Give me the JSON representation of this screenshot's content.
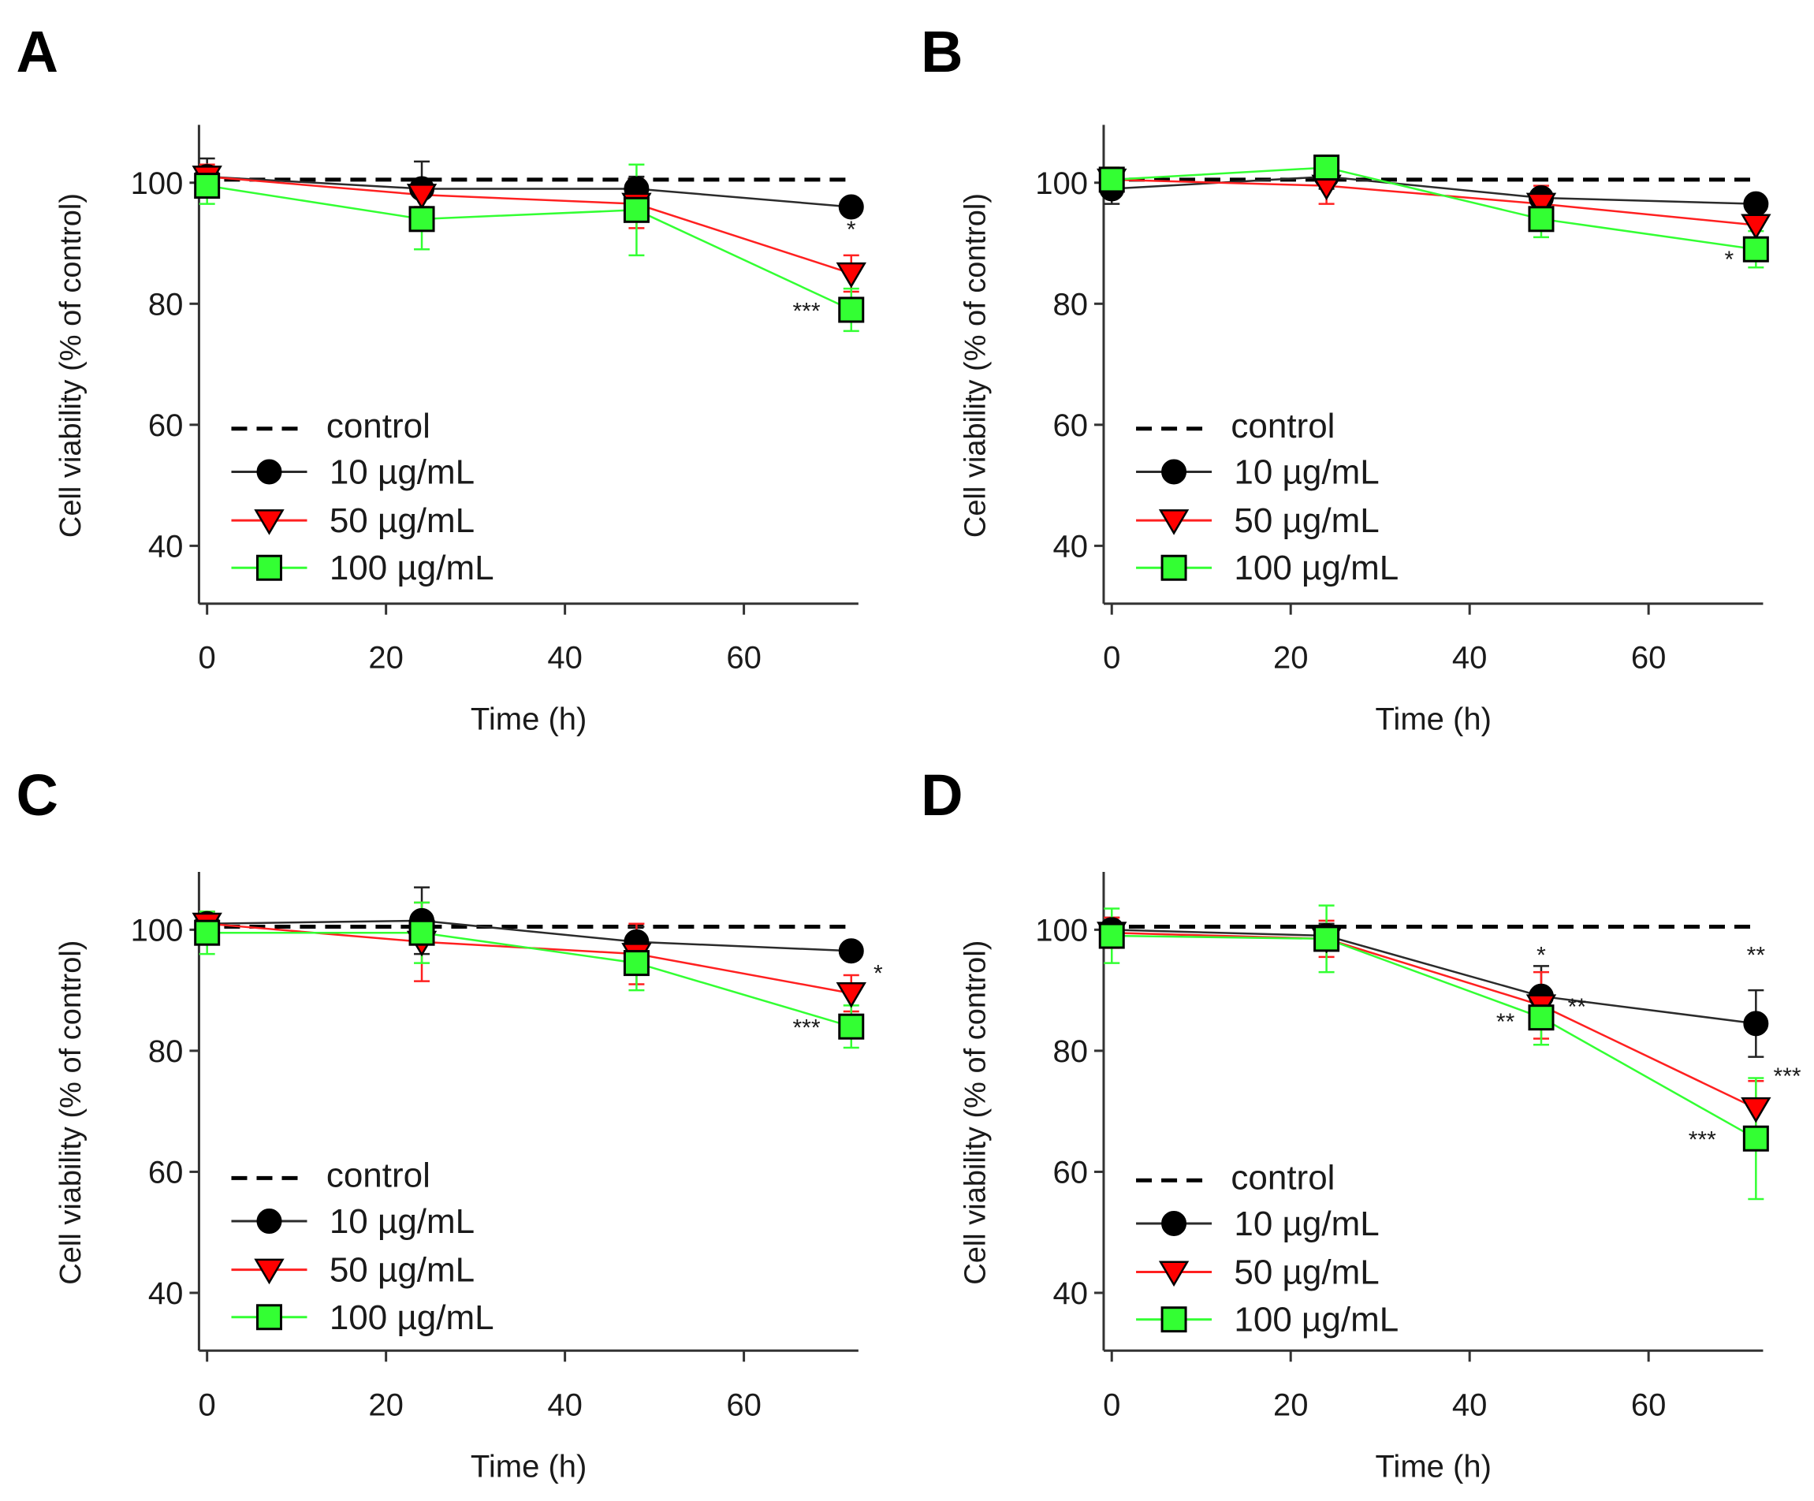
{
  "figure": {
    "ylabel": "Cell viability (% of control)",
    "xlabel": "Time (h)"
  },
  "legend": {
    "control": "control",
    "s10": "10 µg/mL",
    "s50": "50 µg/mL",
    "s100": "100 µg/mL"
  },
  "colors": {
    "s10_fill": "#000000",
    "s10_line": "#2b2b2b",
    "s50_fill": "#ff0000",
    "s50_line": "#ff2020",
    "s100_fill": "#33ff33",
    "s100_line": "#33ff33",
    "control": "#000000"
  },
  "chart_data": [
    {
      "panel": "A",
      "type": "line",
      "xlabel": "Time (h)",
      "ylabel": "Cell viability (% of control)",
      "xlim": [
        -1,
        73
      ],
      "ylim": [
        30,
        110
      ],
      "xticks": [
        0,
        20,
        40,
        60
      ],
      "xtick_labels": [
        "0",
        "20",
        "40",
        "60"
      ],
      "yticks": [
        40,
        60,
        80,
        100
      ],
      "ytick_labels": [
        "40",
        "60",
        "80",
        "100"
      ],
      "control": 100.5,
      "x": [
        0,
        24,
        48,
        72
      ],
      "series": [
        {
          "key": "s10",
          "name": "10 µg/mL",
          "values": [
            101,
            99,
            99,
            96
          ],
          "errors": [
            3,
            4.5,
            2,
            1.5
          ]
        },
        {
          "key": "s50",
          "name": "50 µg/mL",
          "values": [
            101,
            98,
            96.5,
            85
          ],
          "errors": [
            2,
            2,
            4,
            3
          ]
        },
        {
          "key": "s100",
          "name": "100 µg/mL",
          "values": [
            99.5,
            94,
            95.5,
            79
          ],
          "errors": [
            3,
            5,
            7.5,
            3.5
          ]
        }
      ],
      "annotations": [
        {
          "text": "*",
          "x": 72,
          "y": 91
        },
        {
          "text": "***",
          "x": 67,
          "y": 77.5
        }
      ]
    },
    {
      "panel": "B",
      "type": "line",
      "xlabel": "Time (h)",
      "ylabel": "Cell viability (% of control)",
      "xlim": [
        -1,
        73
      ],
      "ylim": [
        30,
        110
      ],
      "xticks": [
        0,
        20,
        40,
        60
      ],
      "xtick_labels": [
        "0",
        "20",
        "40",
        "60"
      ],
      "yticks": [
        40,
        60,
        80,
        100
      ],
      "ytick_labels": [
        "40",
        "60",
        "80",
        "100"
      ],
      "control": 100.5,
      "x": [
        0,
        24,
        48,
        72
      ],
      "series": [
        {
          "key": "s10",
          "name": "10 µg/mL",
          "values": [
            99,
            101,
            97.5,
            96.5
          ],
          "errors": [
            2.5,
            2,
            1.5,
            1
          ]
        },
        {
          "key": "s50",
          "name": "50 µg/mL",
          "values": [
            100.5,
            99.5,
            96.5,
            93
          ],
          "errors": [
            2,
            3,
            3,
            2.5
          ]
        },
        {
          "key": "s100",
          "name": "100 µg/mL",
          "values": [
            100.5,
            102.5,
            94,
            89
          ],
          "errors": [
            2,
            2,
            3,
            3
          ]
        }
      ],
      "annotations": [
        {
          "text": "*",
          "x": 69,
          "y": 86
        }
      ]
    },
    {
      "panel": "C",
      "type": "line",
      "xlabel": "Time (h)",
      "ylabel": "Cell viability (% of control)",
      "xlim": [
        -1,
        73
      ],
      "ylim": [
        30,
        110
      ],
      "xticks": [
        0,
        20,
        40,
        60
      ],
      "xtick_labels": [
        "0",
        "20",
        "40",
        "60"
      ],
      "yticks": [
        40,
        60,
        80,
        100
      ],
      "ytick_labels": [
        "40",
        "60",
        "80",
        "100"
      ],
      "control": 100.5,
      "x": [
        0,
        24,
        48,
        72
      ],
      "series": [
        {
          "key": "s10",
          "name": "10 µg/mL",
          "values": [
            101,
            101.5,
            98,
            96.5
          ],
          "errors": [
            2,
            5.5,
            2.5,
            1.5
          ]
        },
        {
          "key": "s50",
          "name": "50 µg/mL",
          "values": [
            101,
            98,
            96,
            89.5
          ],
          "errors": [
            2,
            6.5,
            5,
            3
          ]
        },
        {
          "key": "s100",
          "name": "100 µg/mL",
          "values": [
            99.5,
            99.5,
            94.5,
            84
          ],
          "errors": [
            3.5,
            5,
            4.5,
            3.5
          ]
        }
      ],
      "annotations": [
        {
          "text": "*",
          "x": 75,
          "y": 91.5
        },
        {
          "text": "***",
          "x": 67,
          "y": 82.5
        }
      ]
    },
    {
      "panel": "D",
      "type": "line",
      "xlabel": "Time (h)",
      "ylabel": "Cell viability (% of control)",
      "xlim": [
        -1,
        73
      ],
      "ylim": [
        30,
        110
      ],
      "xticks": [
        0,
        20,
        40,
        60
      ],
      "xtick_labels": [
        "0",
        "20",
        "40",
        "60"
      ],
      "yticks": [
        40,
        60,
        80,
        100
      ],
      "ytick_labels": [
        "40",
        "60",
        "80",
        "100"
      ],
      "control": 100.5,
      "x": [
        0,
        24,
        48,
        72
      ],
      "series": [
        {
          "key": "s10",
          "name": "10 µg/mL",
          "values": [
            100,
            99,
            89,
            84.5
          ],
          "errors": [
            2,
            2,
            5,
            5.5
          ]
        },
        {
          "key": "s50",
          "name": "50 µg/mL",
          "values": [
            99.5,
            98.5,
            87.5,
            70.5
          ],
          "errors": [
            2.5,
            3,
            5.5,
            4.5
          ]
        },
        {
          "key": "s100",
          "name": "100 µg/mL",
          "values": [
            99,
            98.5,
            85.5,
            65.5
          ],
          "errors": [
            4.5,
            5.5,
            4.5,
            10
          ]
        }
      ],
      "annotations": [
        {
          "text": "*",
          "x": 48,
          "y": 94.5
        },
        {
          "text": "**",
          "x": 44,
          "y": 83.5
        },
        {
          "text": "**",
          "x": 52,
          "y": 86
        },
        {
          "text": "**",
          "x": 72,
          "y": 94.5
        },
        {
          "text": "***",
          "x": 75.5,
          "y": 74.5
        },
        {
          "text": "***",
          "x": 66,
          "y": 64
        }
      ]
    }
  ]
}
